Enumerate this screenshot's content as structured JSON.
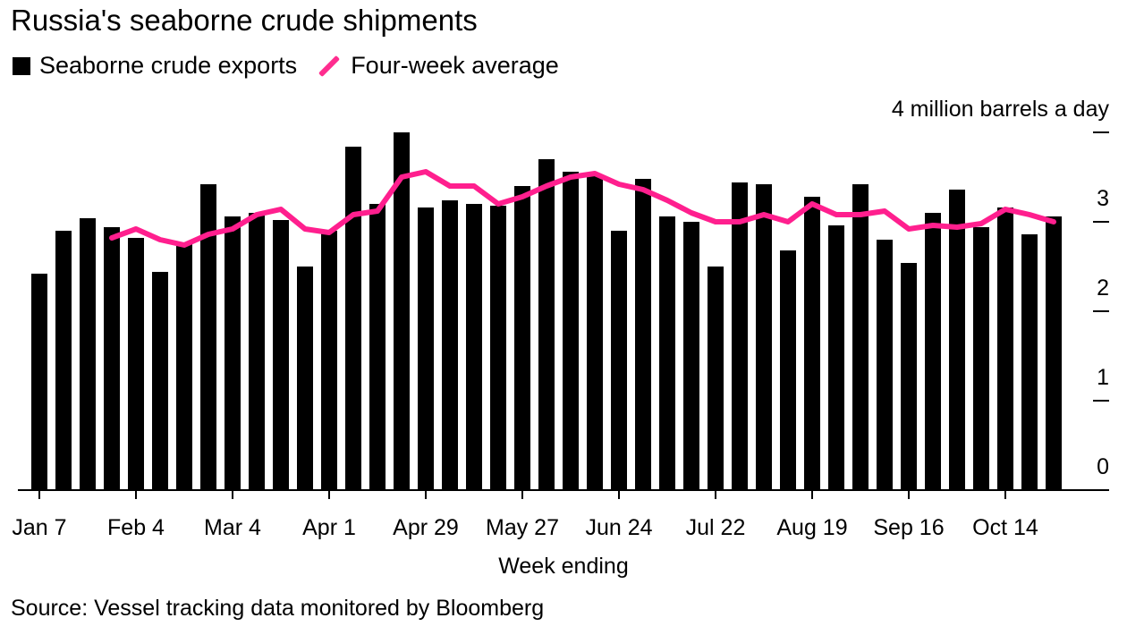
{
  "title": "Russia's seaborne crude shipments",
  "source": "Source: Vessel tracking data monitored by Bloomberg",
  "colors": {
    "bars": "#000000",
    "line": "#ff1f8e"
  },
  "chart_data": {
    "type": "bar",
    "title": "Russia's seaborne crude shipments",
    "xlabel": "Week ending",
    "ylabel": "4 million barrels a day",
    "ylim": [
      0,
      4
    ],
    "yticks": [
      "0",
      "1",
      "2",
      "3",
      "4"
    ],
    "xtick_labels": [
      "Jan 7",
      "Feb 4",
      "Mar 4",
      "Apr 1",
      "Apr 29",
      "May 27",
      "Jun 24",
      "Jul 22",
      "Aug 19",
      "Sep 16",
      "Oct 14"
    ],
    "legend": [
      "Seaborne crude exports",
      "Four-week average"
    ],
    "legend_position": "top-left",
    "grid": false,
    "weeks": 43,
    "series": [
      {
        "name": "Seaborne crude exports",
        "type": "bar",
        "values": [
          2.42,
          2.9,
          3.04,
          2.94,
          2.82,
          2.44,
          2.76,
          3.42,
          3.06,
          3.1,
          3.02,
          2.5,
          2.9,
          3.84,
          3.2,
          4.0,
          3.16,
          3.24,
          3.2,
          3.18,
          3.4,
          3.7,
          3.56,
          3.52,
          2.9,
          3.48,
          3.06,
          3.0,
          2.5,
          3.44,
          3.42,
          2.68,
          3.28,
          2.96,
          3.42,
          2.8,
          2.54,
          3.1,
          3.36,
          2.94,
          3.16,
          2.86,
          3.06
        ]
      },
      {
        "name": "Four-week average",
        "type": "line",
        "values": [
          null,
          null,
          null,
          2.82,
          2.92,
          2.8,
          2.74,
          2.86,
          2.92,
          3.08,
          3.14,
          2.92,
          2.88,
          3.08,
          3.12,
          3.5,
          3.56,
          3.4,
          3.4,
          3.2,
          3.28,
          3.4,
          3.5,
          3.54,
          3.42,
          3.36,
          3.24,
          3.1,
          3.0,
          3.0,
          3.08,
          3.0,
          3.2,
          3.08,
          3.08,
          3.12,
          2.92,
          2.96,
          2.94,
          2.98,
          3.14,
          3.08,
          3.0
        ]
      }
    ]
  }
}
